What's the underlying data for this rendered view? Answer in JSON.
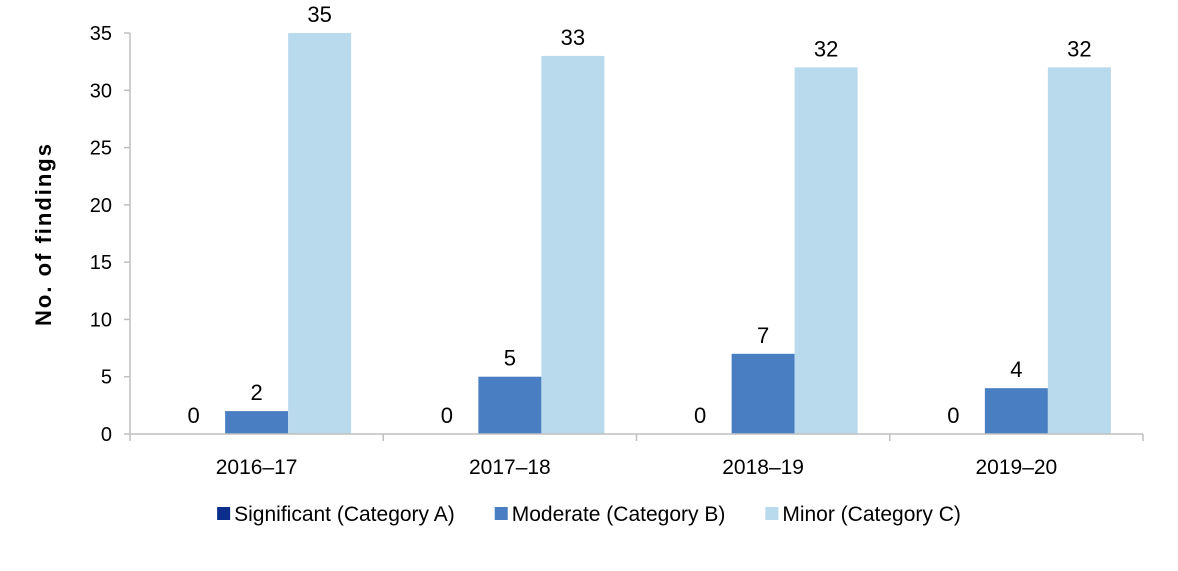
{
  "chart_data": {
    "type": "bar",
    "title": "",
    "xlabel": "",
    "ylabel": "No. of findings",
    "ylim": [
      0,
      35
    ],
    "yticks": [
      "0",
      "5",
      "10",
      "15",
      "20",
      "25",
      "30",
      "35"
    ],
    "grid": false,
    "legend_position": "bottom",
    "categories": [
      "2016–17",
      "2017–18",
      "2018–19",
      "2019–20"
    ],
    "series": [
      {
        "name": "Significant (Category A)",
        "values": [
          0,
          0,
          0,
          0
        ],
        "color": "#0B2E8C"
      },
      {
        "name": "Moderate (Category B)",
        "values": [
          2,
          5,
          7,
          4
        ],
        "color": "#4A7EC2"
      },
      {
        "name": "Minor (Category C)",
        "values": [
          35,
          33,
          32,
          32
        ],
        "color": "#B9D9EC"
      }
    ]
  }
}
